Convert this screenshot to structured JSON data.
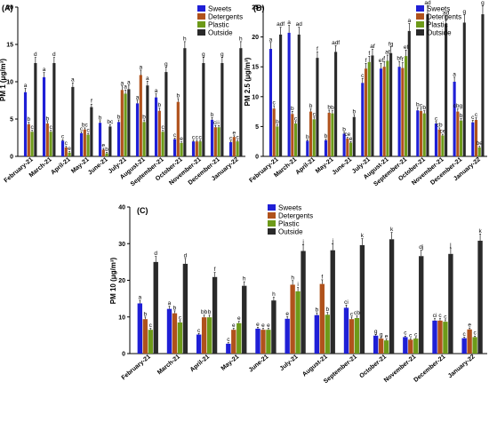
{
  "colors": {
    "Sweets": "#1f1fd6",
    "Detergents": "#b0521c",
    "Plastic": "#6d9a19",
    "Outside": "#2a2a2a"
  },
  "chart_data": [
    {
      "type": "bar",
      "panel_label": "(A)",
      "ylabel": "PM 1 (μg/m³)",
      "ylim": [
        0,
        20
      ],
      "yticks": [
        0,
        5,
        10,
        15,
        20
      ],
      "categories": [
        "February-21",
        "March-21",
        "April-21",
        "May-21",
        "June-21",
        "July-21",
        "August-21",
        "September-21",
        "October-21",
        "November-21",
        "December-21",
        "January-22"
      ],
      "legend": [
        "Sweets",
        "Detergents",
        "Plastic",
        "Outside"
      ],
      "series": [
        {
          "name": "Sweets",
          "values": [
            8.6,
            10.6,
            2.1,
            3.1,
            4.5,
            4.6,
            7.1,
            7.9,
            2.3,
            2.0,
            4.9,
            1.9
          ]
        },
        {
          "name": "Detergents",
          "values": [
            4.3,
            4.4,
            1.2,
            3.6,
            0.9,
            8.9,
            10.9,
            6.1,
            7.3,
            2.0,
            3.9,
            2.6
          ]
        },
        {
          "name": "Plastic",
          "values": [
            3.3,
            3.3,
            0.5,
            2.9,
            0.4,
            8.4,
            4.6,
            3.3,
            1.8,
            2.0,
            3.9,
            2.0
          ]
        },
        {
          "name": "Outside",
          "values": [
            12.5,
            12.5,
            9.3,
            6.6,
            4.0,
            9.0,
            9.5,
            11.3,
            14.5,
            12.5,
            12.5,
            14.5
          ]
        }
      ],
      "labels": [
        [
          "a",
          "b",
          "c",
          "d"
        ],
        [
          "a",
          "b",
          "c",
          "d"
        ],
        [
          "c",
          "c",
          "e",
          "a"
        ],
        [
          "c",
          "bc",
          "c",
          "f"
        ],
        [
          "b",
          "e",
          "b",
          "bc"
        ],
        [
          "b",
          "a",
          "a",
          "a"
        ],
        [
          "a",
          "a",
          "b",
          "a"
        ],
        [
          "a",
          "b",
          "c",
          "g"
        ],
        [
          "c",
          "b",
          "e",
          "h"
        ],
        [
          "c",
          "c",
          "c",
          "g"
        ],
        [
          "b",
          "ci",
          "i",
          "g"
        ],
        [
          "c",
          "e",
          "c",
          "h"
        ]
      ]
    },
    {
      "type": "bar",
      "panel_label": "(B)",
      "ylabel": "PM 2.5 (μg/m³)",
      "ylim": [
        0,
        25
      ],
      "yticks": [
        0,
        5,
        10,
        15,
        20,
        25
      ],
      "categories": [
        "February-21",
        "March-21",
        "April-21",
        "May-21",
        "June-21",
        "July-21",
        "August-21",
        "September-21",
        "October-21",
        "November-21",
        "December-21",
        "January-22"
      ],
      "legend": [
        "Sweets",
        "Detergents",
        "Plastic",
        "Outside"
      ],
      "series": [
        {
          "name": "Sweets",
          "values": [
            18.0,
            20.7,
            2.6,
            2.7,
            3.8,
            12.3,
            14.7,
            15.0,
            7.7,
            5.5,
            12.5,
            5.7
          ]
        },
        {
          "name": "Detergents",
          "values": [
            8.0,
            7.1,
            7.5,
            7.3,
            3.0,
            14.7,
            15.0,
            14.8,
            7.6,
            4.5,
            7.5,
            6.1
          ]
        },
        {
          "name": "Plastic",
          "values": [
            5.0,
            5.5,
            6.2,
            7.2,
            2.3,
            15.8,
            16.0,
            16.8,
            7.2,
            3.5,
            6.0,
            1.5
          ]
        },
        {
          "name": "Outside",
          "values": [
            20.4,
            20.4,
            16.5,
            17.5,
            6.6,
            16.9,
            17.3,
            21.0,
            23.8,
            22.2,
            22.4,
            23.8
          ]
        }
      ],
      "labels": [
        [
          "a",
          "c",
          "b",
          "adf"
        ],
        [
          "a",
          "b",
          "c",
          "ad"
        ],
        [
          "b",
          "b",
          "c",
          "f"
        ],
        [
          "b",
          "b",
          "b",
          "adf"
        ],
        [
          "b",
          "ce",
          "e",
          "b"
        ],
        [
          "c",
          "f",
          "f",
          "af"
        ],
        [
          "ef",
          "f",
          "af",
          "fg"
        ],
        [
          "bf",
          "f",
          "ef",
          "a"
        ],
        [
          "b",
          "c",
          "b",
          "ad"
        ],
        [
          "c",
          "cb",
          "ce",
          "ad"
        ],
        [
          "a",
          "cbg",
          "b",
          "g"
        ],
        [
          "c",
          "c",
          "be",
          "g"
        ]
      ]
    },
    {
      "type": "bar",
      "panel_label": "(C)",
      "ylabel": "PM 10 (μg/m³)",
      "ylim": [
        0,
        40
      ],
      "yticks": [
        0,
        10,
        20,
        30,
        40
      ],
      "categories": [
        "February-21",
        "March-21",
        "April-21",
        "May-21",
        "June-21",
        "July-21",
        "August-21",
        "September-21",
        "October-21",
        "November-21",
        "December-21",
        "January-22"
      ],
      "legend": [
        "Sweets",
        "Detergents",
        "Plastic",
        "Outside"
      ],
      "series": [
        {
          "name": "Sweets",
          "values": [
            13.7,
            12.2,
            5.2,
            2.7,
            6.8,
            9.5,
            10.5,
            12.5,
            4.9,
            4.5,
            9.0,
            4.2
          ]
        },
        {
          "name": "Detergents",
          "values": [
            9.4,
            11.0,
            9.9,
            6.5,
            6.5,
            18.8,
            19.0,
            9.4,
            4.1,
            3.8,
            9.0,
            6.6
          ]
        },
        {
          "name": "Plastic",
          "values": [
            6.5,
            8.5,
            9.9,
            8.3,
            6.5,
            17.0,
            10.6,
            9.7,
            3.6,
            4.1,
            8.7,
            4.5
          ]
        },
        {
          "name": "Outside",
          "values": [
            25.0,
            24.5,
            20.9,
            18.5,
            14.5,
            28.0,
            28.2,
            29.6,
            31.2,
            26.6,
            27.2,
            30.8
          ]
        }
      ],
      "labels": [
        [
          "a",
          "b",
          "c",
          "d"
        ],
        [
          "a",
          "b",
          "c",
          "d"
        ],
        [
          "c",
          "bb",
          "b",
          "f"
        ],
        [
          "c",
          "e",
          "e",
          "h"
        ],
        [
          "e",
          "e",
          "e",
          "h"
        ],
        [
          "e",
          "h",
          "i",
          "j"
        ],
        [
          "b",
          "f",
          "b",
          "j"
        ],
        [
          "ci",
          "c",
          "cb",
          "k"
        ],
        [
          "g",
          "g",
          "e",
          "k"
        ],
        [
          "c",
          "c",
          "c",
          "dj"
        ],
        [
          "ci",
          "c",
          "c",
          "j"
        ],
        [
          "c",
          "e",
          "c",
          "k"
        ]
      ]
    }
  ]
}
